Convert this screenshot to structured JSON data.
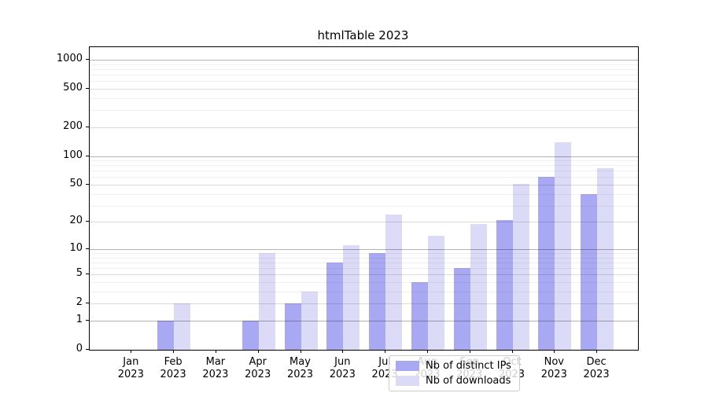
{
  "title": "htmlTable 2023",
  "chart_data": {
    "type": "bar",
    "title": "htmlTable 2023",
    "categories": [
      "Jan",
      "Feb",
      "Mar",
      "Apr",
      "May",
      "Jun",
      "Jul",
      "Aug",
      "Sep",
      "Oct",
      "Nov",
      "Dec"
    ],
    "category_year": "2023",
    "series": [
      {
        "name": "Nb of distinct IPs",
        "color": "#a9a9f3",
        "values": [
          0,
          1,
          0,
          1,
          2,
          7,
          9,
          4,
          6,
          21,
          60,
          40
        ]
      },
      {
        "name": "Nb of downloads",
        "color": "#dbdbf8",
        "values": [
          0,
          2,
          0,
          9,
          3,
          11,
          24,
          14,
          19,
          51,
          140,
          74
        ]
      }
    ],
    "xlabel": "",
    "ylabel": "",
    "y_scale": "log1p",
    "ylim": [
      0,
      1349
    ],
    "y_ticks": [
      0,
      1,
      2,
      5,
      10,
      20,
      50,
      100,
      200,
      500,
      1000
    ],
    "y_decade_ticks": [
      1,
      10,
      100,
      1000
    ],
    "y_minor_gridlines": [
      3,
      4,
      6,
      7,
      8,
      9,
      30,
      40,
      60,
      70,
      80,
      90,
      300,
      400,
      600,
      700,
      800,
      900
    ],
    "grid": "on",
    "legend_position": "lower center (inside plot)"
  },
  "legend": {
    "items": [
      {
        "label": "Nb of distinct IPs"
      },
      {
        "label": "Nb of downloads"
      }
    ]
  }
}
